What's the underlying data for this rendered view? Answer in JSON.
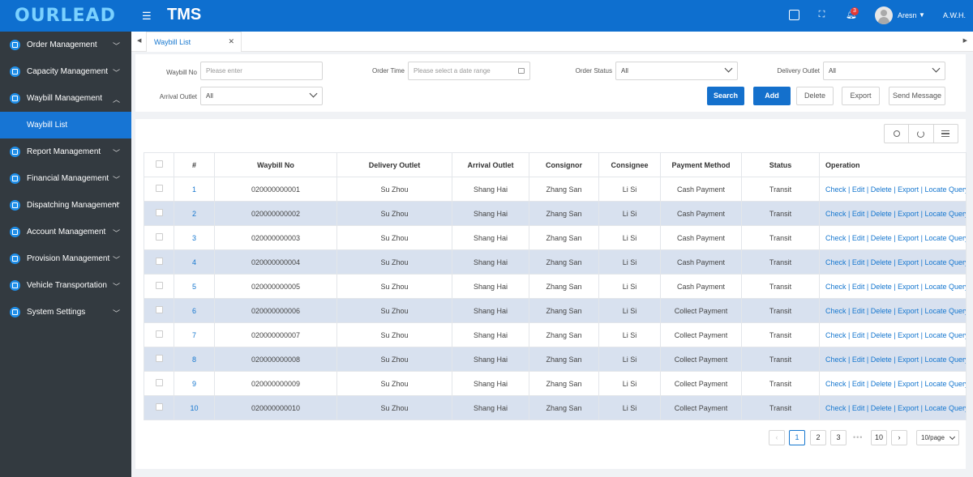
{
  "brand": {
    "logo": "OURLEAD",
    "app_title": "TMS"
  },
  "header": {
    "notifications": "3",
    "user_name": "Aresn",
    "company": "A.W.H."
  },
  "sidebar": {
    "items": [
      {
        "label": "Order Management"
      },
      {
        "label": "Capacity Management"
      },
      {
        "label": "Waybill Management",
        "expanded": true,
        "subitems": [
          {
            "label": "Waybill List",
            "active": true
          }
        ]
      },
      {
        "label": "Report Management"
      },
      {
        "label": "Financial Management"
      },
      {
        "label": "Dispatching Management"
      },
      {
        "label": "Account Management"
      },
      {
        "label": "Provision Management"
      },
      {
        "label": "Vehicle Transportation"
      },
      {
        "label": "System Settings"
      }
    ]
  },
  "tabs": [
    {
      "label": "Waybill List",
      "active": true
    }
  ],
  "filters": {
    "waybill_no": {
      "label": "Waybill No",
      "placeholder": "Please enter"
    },
    "order_time": {
      "label": "Order Time",
      "placeholder": "Please select a date range"
    },
    "order_status": {
      "label": "Order Status",
      "value": "All"
    },
    "delivery_outlet": {
      "label": "Delivery Outlet",
      "value": "All"
    },
    "arrival_outlet": {
      "label": "Arrival Outlet",
      "value": "All"
    }
  },
  "buttons": {
    "search": "Search",
    "add": "Add",
    "delete": "Delete",
    "export": "Export",
    "send_message": "Send Message"
  },
  "table": {
    "columns": [
      "#",
      "Waybill No",
      "Delivery Outlet",
      "Arrival Outlet",
      "Consignor",
      "Consignee",
      "Payment Method",
      "Status",
      "Operation"
    ],
    "operations": [
      "Check",
      "Edit",
      "Delete",
      "Export",
      "Locate Query"
    ],
    "rows": [
      {
        "num": "1",
        "waybill_no": "020000000001",
        "delivery_outlet": "Su Zhou",
        "arrival_outlet": "Shang Hai",
        "consignor": "Zhang San",
        "consignee": "Li Si",
        "payment": "Cash Payment",
        "status": "Transit"
      },
      {
        "num": "2",
        "waybill_no": "020000000002",
        "delivery_outlet": "Su Zhou",
        "arrival_outlet": "Shang Hai",
        "consignor": "Zhang San",
        "consignee": "Li Si",
        "payment": "Cash Payment",
        "status": "Transit"
      },
      {
        "num": "3",
        "waybill_no": "020000000003",
        "delivery_outlet": "Su Zhou",
        "arrival_outlet": "Shang Hai",
        "consignor": "Zhang San",
        "consignee": "Li Si",
        "payment": "Cash Payment",
        "status": "Transit"
      },
      {
        "num": "4",
        "waybill_no": "020000000004",
        "delivery_outlet": "Su Zhou",
        "arrival_outlet": "Shang Hai",
        "consignor": "Zhang San",
        "consignee": "Li Si",
        "payment": "Cash Payment",
        "status": "Transit"
      },
      {
        "num": "5",
        "waybill_no": "020000000005",
        "delivery_outlet": "Su Zhou",
        "arrival_outlet": "Shang Hai",
        "consignor": "Zhang San",
        "consignee": "Li Si",
        "payment": "Cash Payment",
        "status": "Transit"
      },
      {
        "num": "6",
        "waybill_no": "020000000006",
        "delivery_outlet": "Su Zhou",
        "arrival_outlet": "Shang Hai",
        "consignor": "Zhang San",
        "consignee": "Li Si",
        "payment": "Collect Payment",
        "status": "Transit"
      },
      {
        "num": "7",
        "waybill_no": "020000000007",
        "delivery_outlet": "Su Zhou",
        "arrival_outlet": "Shang Hai",
        "consignor": "Zhang San",
        "consignee": "Li Si",
        "payment": "Collect Payment",
        "status": "Transit"
      },
      {
        "num": "8",
        "waybill_no": "020000000008",
        "delivery_outlet": "Su Zhou",
        "arrival_outlet": "Shang Hai",
        "consignor": "Zhang San",
        "consignee": "Li Si",
        "payment": "Collect Payment",
        "status": "Transit"
      },
      {
        "num": "9",
        "waybill_no": "020000000009",
        "delivery_outlet": "Su Zhou",
        "arrival_outlet": "Shang Hai",
        "consignor": "Zhang San",
        "consignee": "Li Si",
        "payment": "Collect Payment",
        "status": "Transit"
      },
      {
        "num": "10",
        "waybill_no": "020000000010",
        "delivery_outlet": "Su Zhou",
        "arrival_outlet": "Shang Hai",
        "consignor": "Zhang San",
        "consignee": "Li Si",
        "payment": "Collect Payment",
        "status": "Transit"
      }
    ]
  },
  "pagination": {
    "pages": [
      "1",
      "2",
      "3"
    ],
    "ellipsis": "•••",
    "last_page": "10",
    "current": "1",
    "page_size": "10/page"
  },
  "icons": {
    "menu": "hamburger-icon",
    "screen": "screen-icon",
    "fullscreen": "fullscreen-icon",
    "bell": "bell-icon",
    "search": "search-icon",
    "refresh": "refresh-icon",
    "settings": "column-settings-icon"
  },
  "colors": {
    "brand_blue": "#0e6fcf",
    "sidebar_bg": "#333a40",
    "row_alt": "#d8e1ef",
    "link": "#1677cf"
  }
}
